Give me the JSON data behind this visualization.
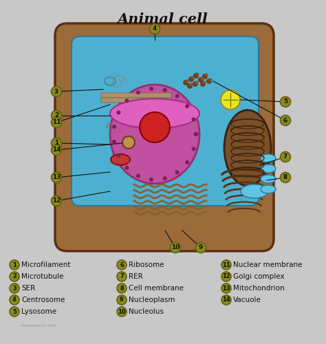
{
  "title": "Animal cell",
  "bg_color": "#c8c8c8",
  "cell_outer_color": "#9B6B3A",
  "cell_inner_color": "#4EB0D0",
  "nucleus_color": "#C050A0",
  "nucleus_inner_color": "#E060B0",
  "nucleolus_color": "#CC2222",
  "mitochondrion_color": "#7a5028",
  "golgi_color": "#6b4220",
  "rer_color": "#8B6030",
  "lysosome_color": "#CC3333",
  "vacuole_color": "#c8a060",
  "centrosome_color": "#e8e820",
  "label_bg": "#8B8B20",
  "label_edge": "#606010",
  "label_text": "#111100",
  "line_color": "#111111",
  "legend_col1": [
    {
      "n": "1",
      "t": "Microfilament"
    },
    {
      "n": "2",
      "t": "Microtubule"
    },
    {
      "n": "3",
      "t": "SER"
    },
    {
      "n": "4",
      "t": "Centrosome"
    },
    {
      "n": "5",
      "t": "Lysosome"
    }
  ],
  "legend_col2": [
    {
      "n": "6",
      "t": "Ribosome"
    },
    {
      "n": "7",
      "t": "RER"
    },
    {
      "n": "8",
      "t": "Cell membrane"
    },
    {
      "n": "9",
      "t": "Nucleoplasm"
    },
    {
      "n": "10",
      "t": "Nucleolus"
    }
  ],
  "legend_col3": [
    {
      "n": "11",
      "t": "Nuclear membrane"
    },
    {
      "n": "12",
      "t": "Golgi complex"
    },
    {
      "n": "13",
      "t": "Mitochondrion"
    },
    {
      "n": "14",
      "t": "Vacuole"
    }
  ]
}
